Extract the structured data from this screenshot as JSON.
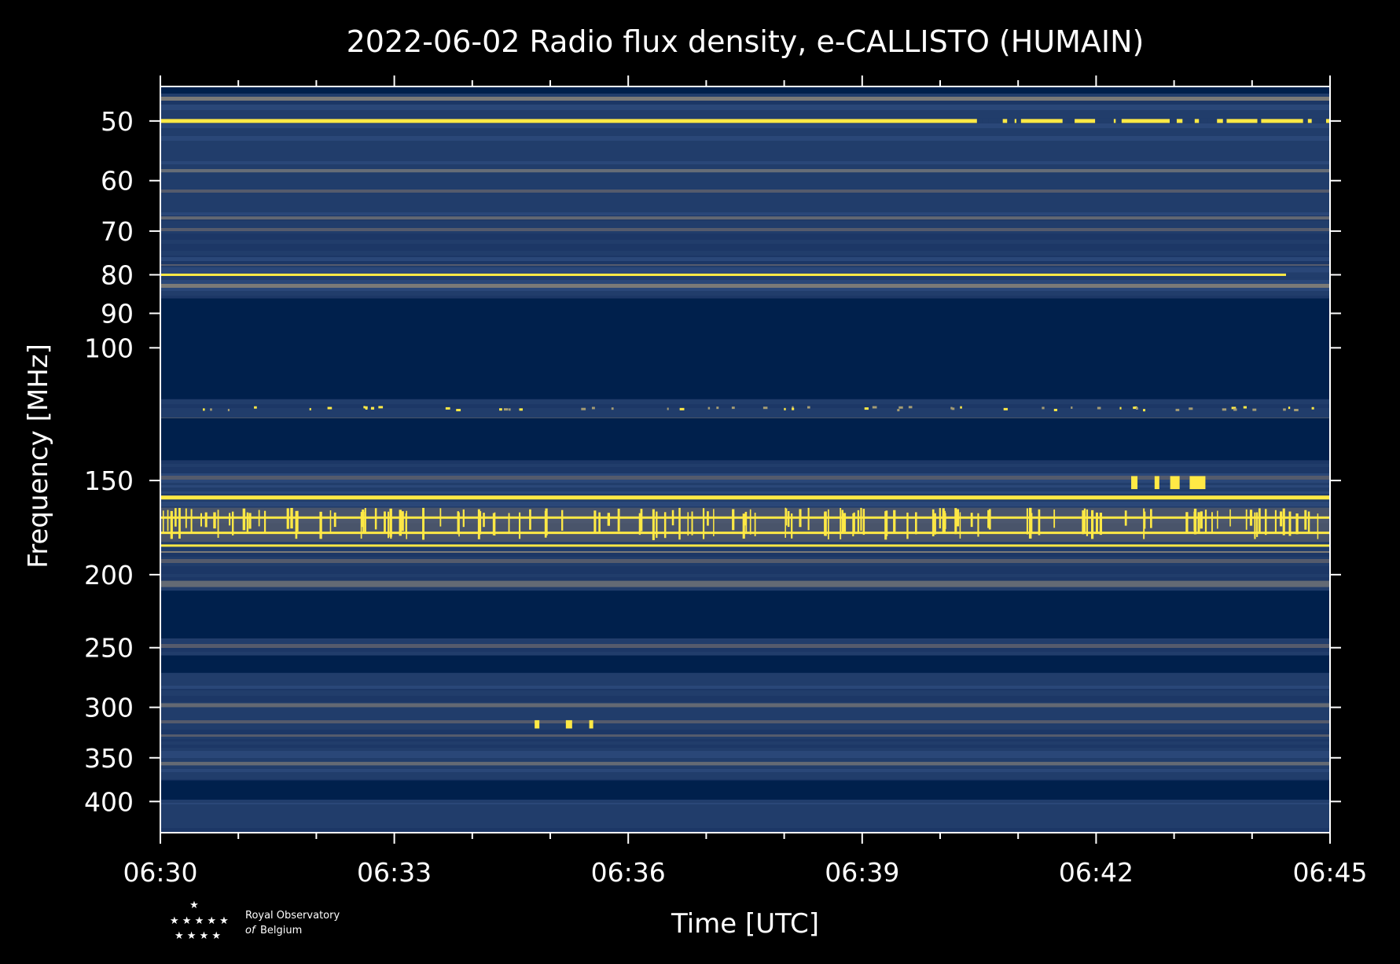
{
  "chart_data": {
    "type": "heatmap",
    "title": "2022-06-02 Radio flux density, e-CALLISTO (HUMAIN)",
    "xlabel": "Time [UTC]",
    "ylabel": "Frequency [MHz]",
    "x_range": [
      "06:30",
      "06:45"
    ],
    "x_ticks": [
      "06:30",
      "06:33",
      "06:36",
      "06:39",
      "06:42",
      "06:45"
    ],
    "y_scale": "log",
    "y_ticks": [
      50,
      60,
      70,
      80,
      90,
      100,
      150,
      200,
      250,
      300,
      350,
      400
    ],
    "y_range": [
      45,
      440
    ],
    "colormap": [
      "#00204c",
      "#213d6b",
      "#555b6c",
      "#7b7a77",
      "#a59c74",
      "#d3c164",
      "#ffe945"
    ],
    "bright_lines_mhz": [
      50,
      80,
      158,
      168,
      176,
      183
    ],
    "gap_bands_mhz": [
      [
        86,
        117
      ],
      [
        124,
        141
      ],
      [
        210,
        243
      ],
      [
        256,
        270
      ],
      [
        375,
        398
      ]
    ]
  },
  "logo": {
    "line1": "Royal Observatory",
    "line2_prefix": "of",
    "line2": "Belgium"
  }
}
